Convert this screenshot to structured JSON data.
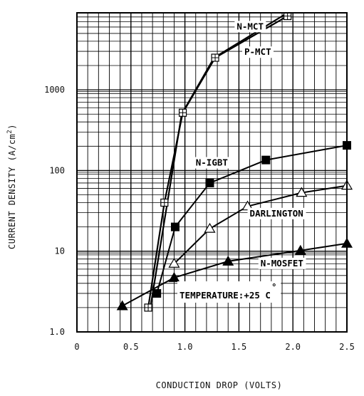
{
  "chart_data": {
    "type": "line",
    "xlabel": "CONDUCTION DROP (VOLTS)",
    "ylabel": "CURRENT DENSITY (A/cm",
    "ylabel_sup": "2",
    "ylabel_close": ")",
    "y_scale": "log",
    "xlim": [
      0,
      2.5
    ],
    "ylim": [
      1,
      9000
    ],
    "grid": true,
    "x_ticks": [
      {
        "value": 0,
        "label": "0"
      },
      {
        "value": 0.5,
        "label": "0.5"
      },
      {
        "value": 1.0,
        "label": "1.0"
      },
      {
        "value": 1.5,
        "label": "1.5"
      },
      {
        "value": 2.0,
        "label": "2.0"
      },
      {
        "value": 2.5,
        "label": "2.5"
      }
    ],
    "y_ticks": [
      {
        "value": 1,
        "label": "1.0"
      },
      {
        "value": 10,
        "label": "10"
      },
      {
        "value": 100,
        "label": "100"
      },
      {
        "value": 1000,
        "label": "1000"
      }
    ],
    "series": [
      {
        "name": "N-MCT",
        "marker": "none",
        "label_at": [
          1.48,
          5600
        ],
        "x": [
          0.68,
          0.97,
          1.27,
          1.92
        ],
        "y": [
          2,
          500,
          2500,
          8500
        ]
      },
      {
        "name": "P-MCT",
        "marker": "square-cross",
        "label_at": [
          1.55,
          2700
        ],
        "x": [
          0.66,
          0.81,
          0.98,
          1.28,
          1.95
        ],
        "y": [
          2,
          40,
          520,
          2500,
          8200
        ]
      },
      {
        "name": "N-IGBT",
        "marker": "filled-square",
        "label_at": [
          1.1,
          115
        ],
        "x": [
          0.74,
          0.91,
          1.23,
          1.75,
          2.5
        ],
        "y": [
          3,
          20,
          70,
          135,
          205
        ]
      },
      {
        "name": "DARLINGTON",
        "marker": "open-triangle",
        "label_at": [
          1.6,
          27
        ],
        "x": [
          0.9,
          1.23,
          1.58,
          2.08,
          2.5
        ],
        "y": [
          7,
          19,
          36,
          53,
          65
        ]
      },
      {
        "name": "N-MOSFET",
        "marker": "filled-triangle",
        "label_at": [
          1.7,
          6.5
        ],
        "x": [
          0.42,
          0.9,
          1.4,
          2.07,
          2.5
        ],
        "y": [
          2.1,
          4.7,
          7.5,
          10.2,
          12.5
        ]
      }
    ],
    "annotations": [
      {
        "text": "TEMPERATURE:+25 C",
        "text_sup": "°",
        "at": [
          0.95,
          2.6
        ]
      }
    ]
  }
}
